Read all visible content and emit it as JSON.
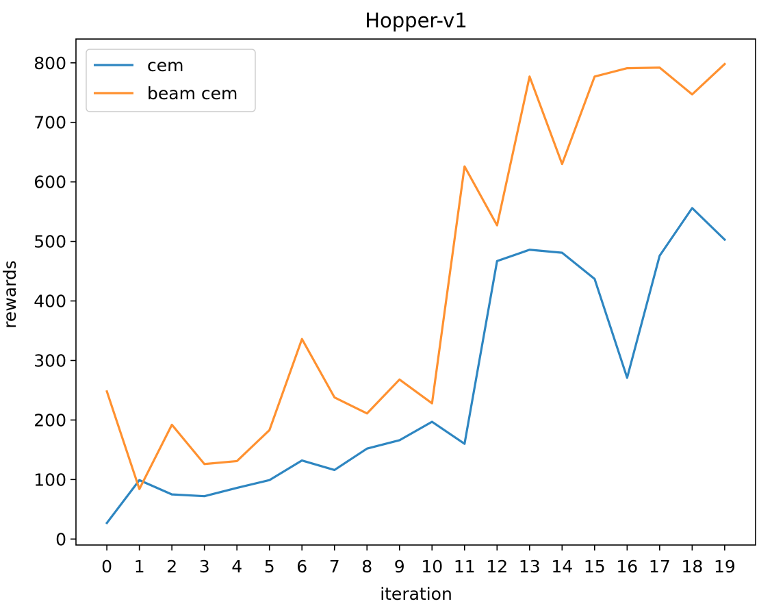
{
  "chart_data": {
    "type": "line",
    "title": "Hopper-v1",
    "xlabel": "iteration",
    "ylabel": "rewards",
    "x": [
      0,
      1,
      2,
      3,
      4,
      5,
      6,
      7,
      8,
      9,
      10,
      11,
      12,
      13,
      14,
      15,
      16,
      17,
      18,
      19
    ],
    "xticks": [
      "0",
      "1",
      "2",
      "3",
      "4",
      "5",
      "6",
      "7",
      "8",
      "9",
      "10",
      "11",
      "12",
      "13",
      "14",
      "15",
      "16",
      "17",
      "18",
      "19"
    ],
    "yticks": [
      0,
      100,
      200,
      300,
      400,
      500,
      600,
      700,
      800
    ],
    "ylim": [
      -10,
      840
    ],
    "xlim": [
      -0.95,
      19.95
    ],
    "grid": false,
    "legend_position": "upper-left",
    "series": [
      {
        "name": "cem",
        "color": "#2e86c1",
        "values": [
          27,
          99,
          75,
          72,
          86,
          99,
          132,
          116,
          152,
          166,
          197,
          160,
          467,
          486,
          481,
          437,
          271,
          476,
          556,
          503
        ]
      },
      {
        "name": "beam cem",
        "color": "#ff9130",
        "values": [
          248,
          84,
          192,
          126,
          131,
          183,
          336,
          238,
          211,
          268,
          228,
          626,
          527,
          777,
          630,
          777,
          791,
          792,
          747,
          798
        ]
      }
    ]
  }
}
